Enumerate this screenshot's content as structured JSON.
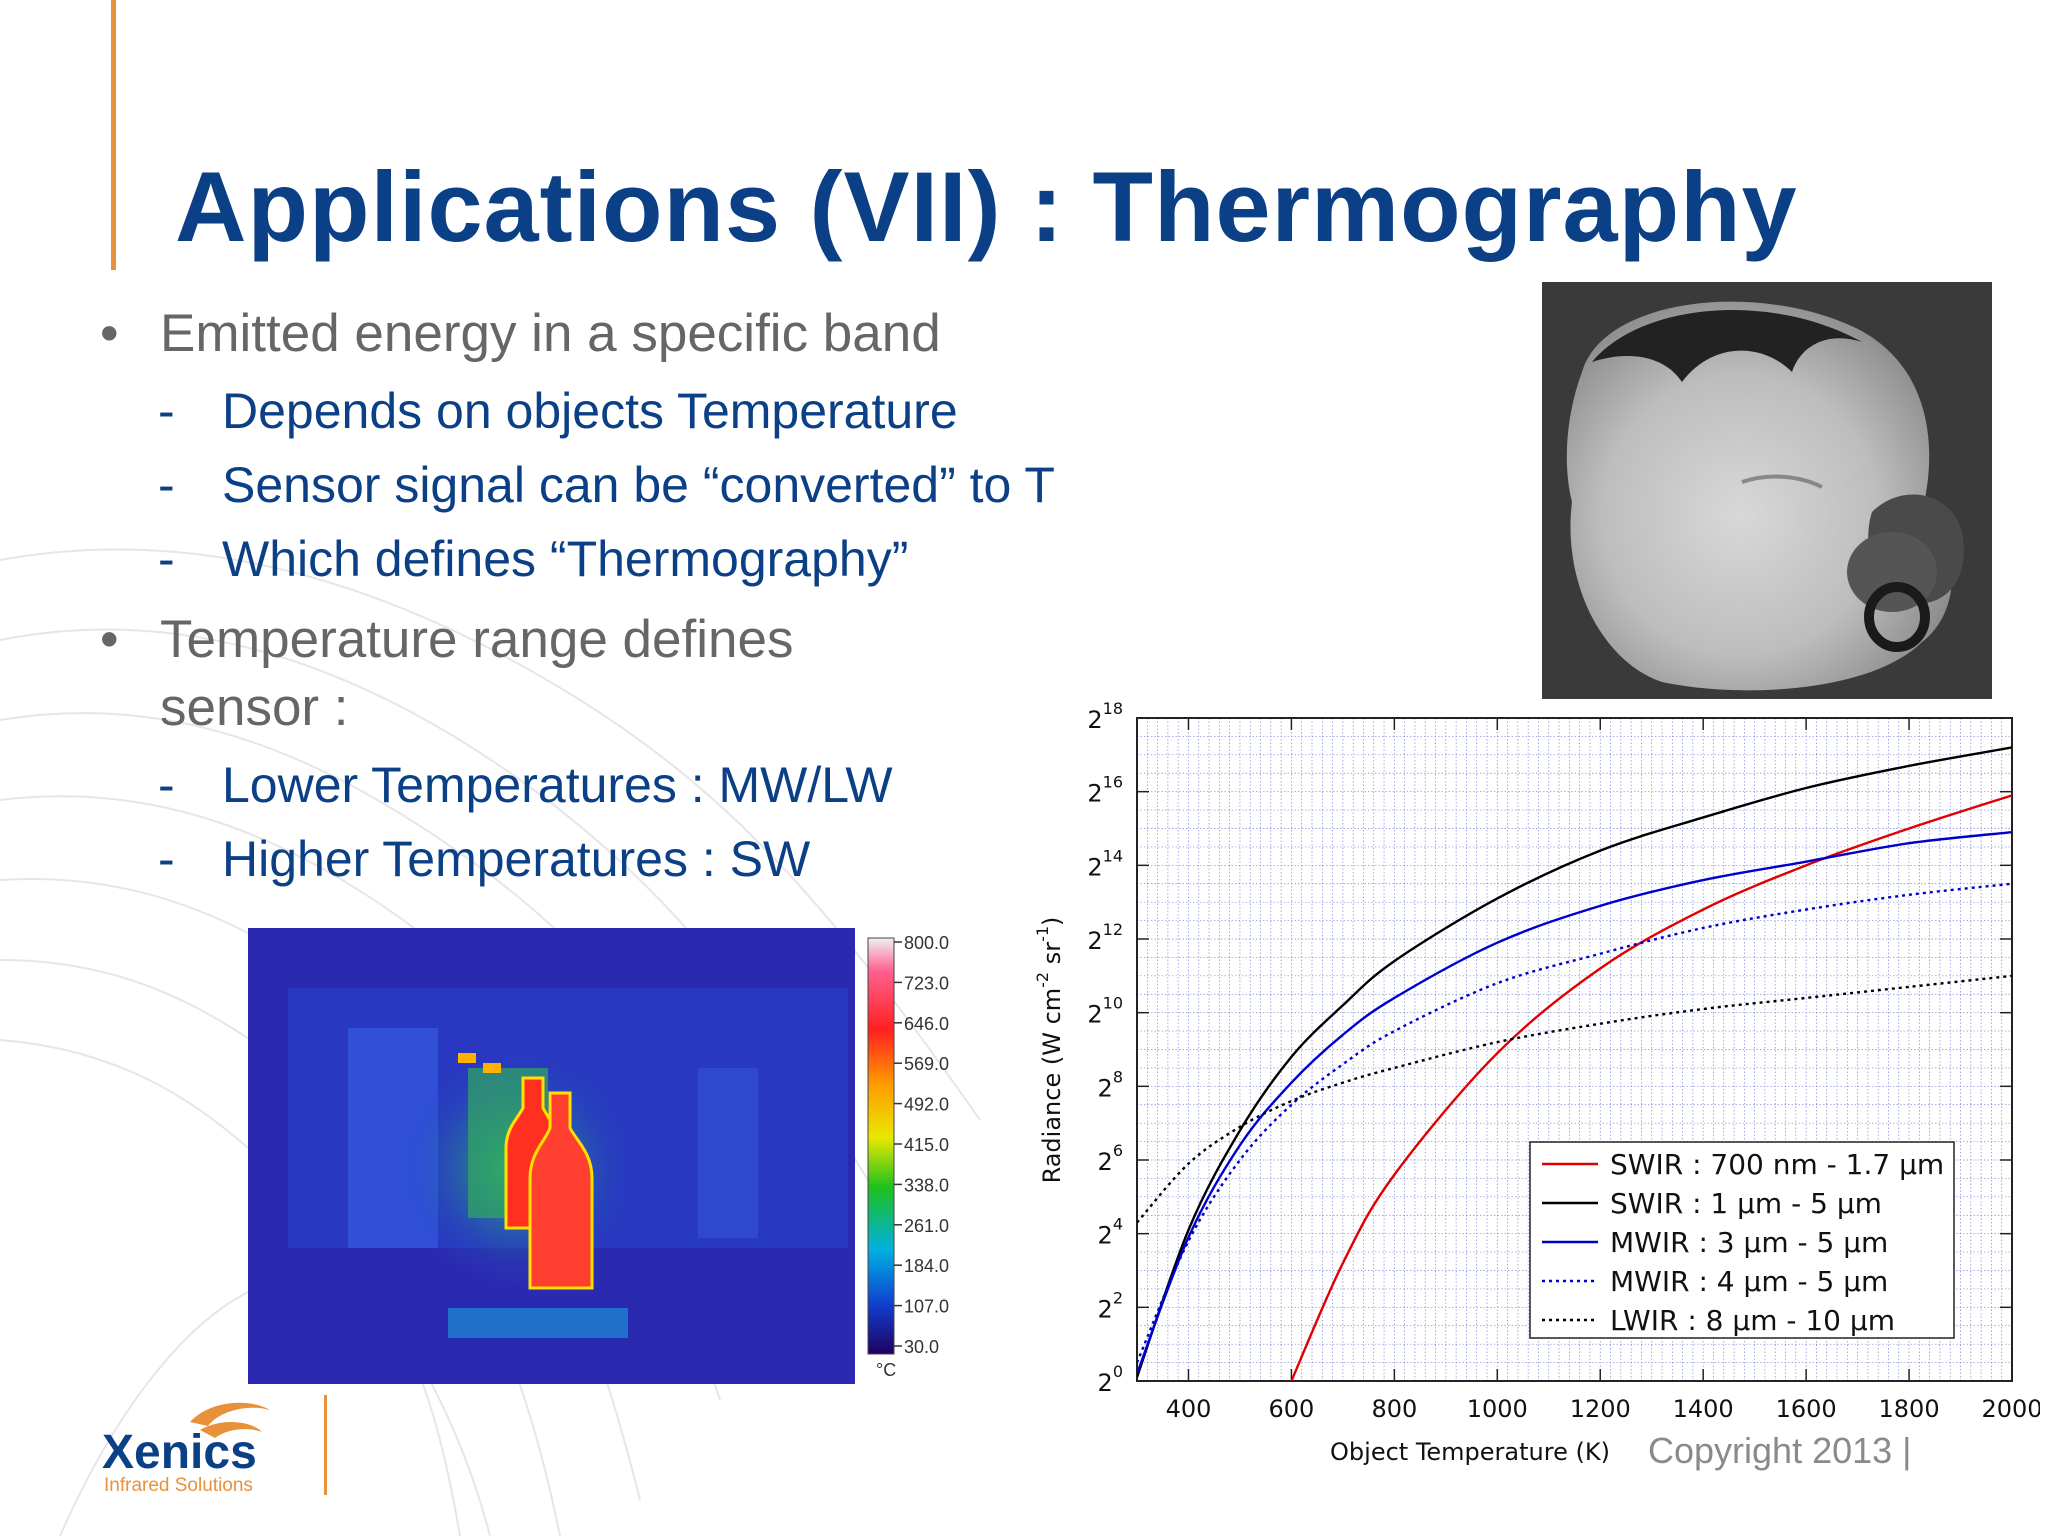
{
  "slide": {
    "title": "Applications (VII) : Thermography",
    "copyright": "Copyright 2013 |",
    "colors": {
      "title": "#0b3f86",
      "accent": "#e8913a",
      "bullet_gray": "#666666"
    }
  },
  "bullets": [
    {
      "text": "Emitted energy in a specific band",
      "marker": "•",
      "sub": [
        {
          "marker": "-",
          "text": "Depends on objects Temperature"
        },
        {
          "marker": "-",
          "text": "Sensor signal can be “converted” to T"
        },
        {
          "marker": "-",
          "text": "Which defines “Thermography”"
        }
      ]
    },
    {
      "text": "Temperature range defines sensor :",
      "marker": "•",
      "sub": [
        {
          "marker": "-",
          "text": "Lower Temperatures : MW/LW"
        },
        {
          "marker": "-",
          "text": "Higher Temperatures : SW"
        }
      ]
    }
  ],
  "thermal_image": {
    "scale_values": [
      "800.0",
      "723.0",
      "646.0",
      "569.0",
      "492.0",
      "415.0",
      "338.0",
      "261.0",
      "184.0",
      "107.0",
      "30.0"
    ],
    "unit": "°C"
  },
  "logo": {
    "name": "Xenics",
    "tagline": "Infrared Solutions"
  },
  "chart_data": {
    "type": "line",
    "xlabel": "Object Temperature (K)",
    "ylabel": "Radiance (W cm-2 sr-1)",
    "ylabel_parts": {
      "main": "Radiance (W cm",
      "exp1": "-2",
      "mid": " sr",
      "exp2": "-1",
      "end": ")"
    },
    "xlim": [
      300,
      2000
    ],
    "ylim_log2": [
      0,
      18
    ],
    "x_ticks": [
      400,
      600,
      800,
      1000,
      1200,
      1400,
      1600,
      1800,
      2000
    ],
    "y_ticks": [
      {
        "base": "2",
        "exp": "0"
      },
      {
        "base": "2",
        "exp": "2"
      },
      {
        "base": "2",
        "exp": "4"
      },
      {
        "base": "2",
        "exp": "6"
      },
      {
        "base": "2",
        "exp": "8"
      },
      {
        "base": "2",
        "exp": "10"
      },
      {
        "base": "2",
        "exp": "12"
      },
      {
        "base": "2",
        "exp": "14"
      },
      {
        "base": "2",
        "exp": "16"
      },
      {
        "base": "2",
        "exp": "18"
      }
    ],
    "y_scale": "log2",
    "grid": true,
    "legend_position": "bottom-right",
    "x": [
      300,
      400,
      500,
      600,
      700,
      800,
      1000,
      1200,
      1400,
      1600,
      1800,
      2000
    ],
    "series": [
      {
        "name": "SWIR : 700 nm - 1.7 µm",
        "color": "#e00000",
        "style": "solid",
        "y_log2": [
          null,
          null,
          null,
          0.0,
          3.2,
          5.6,
          8.9,
          11.2,
          12.8,
          14.0,
          15.0,
          15.9
        ]
      },
      {
        "name": "SWIR : 1 µm - 5 µm",
        "color": "#000000",
        "style": "solid",
        "y_log2": [
          0.1,
          4.1,
          6.8,
          8.8,
          10.2,
          11.4,
          13.1,
          14.4,
          15.3,
          16.1,
          16.7,
          17.2
        ]
      },
      {
        "name": "MWIR : 3 µm - 5 µm",
        "color": "#0000cc",
        "style": "solid",
        "y_log2": [
          0.2,
          3.9,
          6.4,
          8.1,
          9.4,
          10.4,
          11.9,
          12.9,
          13.6,
          14.1,
          14.6,
          14.9
        ]
      },
      {
        "name": "MWIR : 4 µm - 5 µm",
        "color": "#0000cc",
        "style": "dotted",
        "y_log2": [
          0.5,
          3.8,
          6.0,
          7.5,
          8.6,
          9.5,
          10.8,
          11.6,
          12.3,
          12.8,
          13.2,
          13.5
        ]
      },
      {
        "name": "LWIR : 8 µm - 10 µm",
        "color": "#000000",
        "style": "dotted",
        "y_log2": [
          4.3,
          5.9,
          6.9,
          7.6,
          8.1,
          8.5,
          9.2,
          9.7,
          10.1,
          10.4,
          10.7,
          11.0
        ]
      }
    ]
  }
}
